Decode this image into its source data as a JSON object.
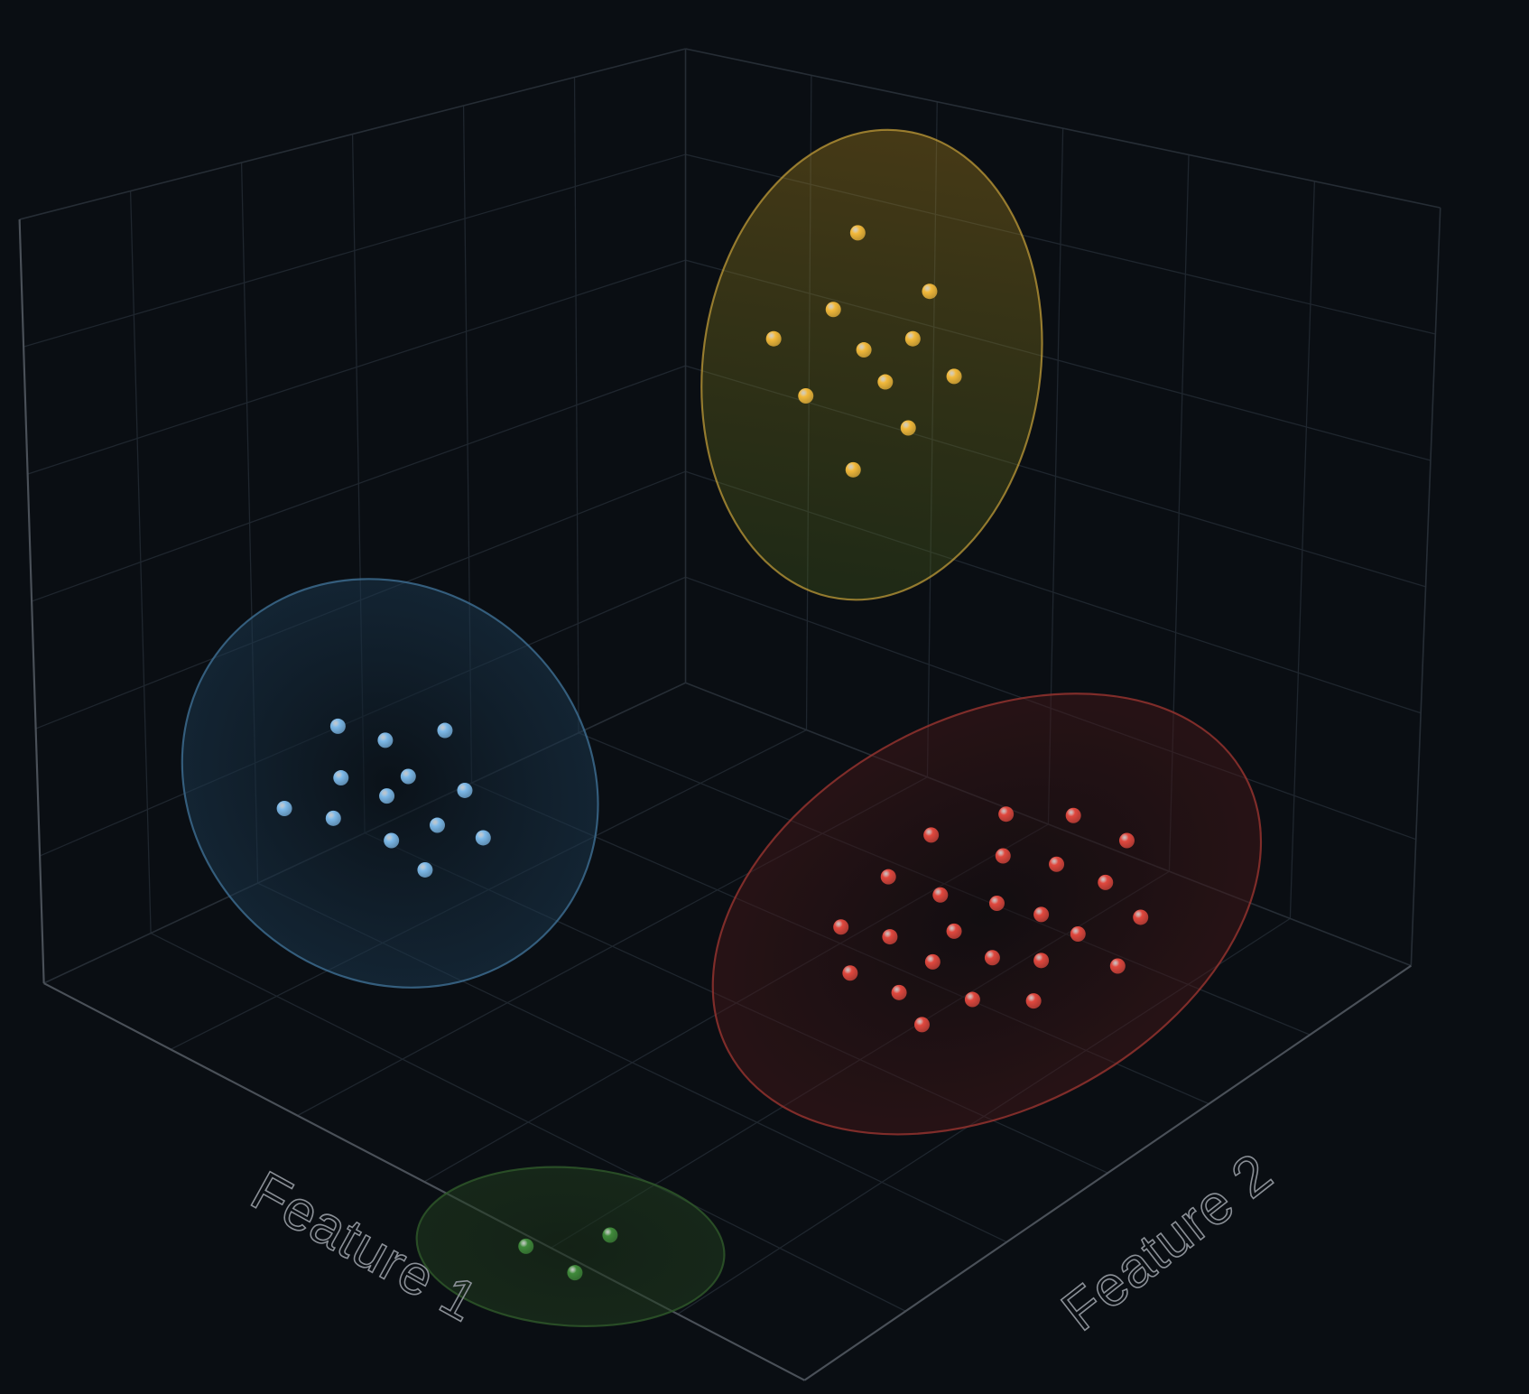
{
  "chart_data": {
    "type": "scatter",
    "axis_labels": [
      "Feature 1",
      "Feature 2"
    ],
    "xlim": [
      0,
      100
    ],
    "ylim": [
      0,
      100
    ],
    "series": [
      {
        "color": "#f2b93b",
        "x": [
          56.1,
          60.8,
          54.5,
          50.6,
          56.5,
          59.7,
          57.9,
          62.4,
          52.7,
          59.4,
          55.8
        ],
        "values": [
          83.3,
          79.1,
          77.8,
          75.7,
          74.9,
          75.7,
          72.6,
          73.0,
          71.6,
          69.3,
          66.3
        ]
      },
      {
        "color": "#7db9e8",
        "x": [
          22.1,
          25.2,
          29.1,
          22.3,
          26.7,
          25.3,
          30.4,
          18.6,
          21.8,
          28.6,
          25.6,
          31.6,
          27.8
        ],
        "values": [
          47.9,
          46.9,
          47.6,
          44.2,
          44.3,
          42.9,
          43.3,
          42.0,
          41.3,
          40.8,
          39.7,
          39.9,
          37.6
        ]
      },
      {
        "color": "#e0483e",
        "x": [
          65.8,
          70.2,
          60.9,
          73.7,
          65.6,
          69.1,
          58.1,
          72.3,
          61.5,
          65.2,
          68.1,
          74.6,
          55.0,
          62.4,
          58.2,
          70.5,
          61.0,
          64.9,
          68.1,
          73.1,
          55.6,
          58.8,
          63.6,
          67.6,
          60.3
        ],
        "values": [
          41.6,
          41.5,
          40.1,
          39.7,
          38.6,
          38.0,
          37.1,
          36.7,
          35.8,
          35.2,
          34.4,
          34.2,
          33.5,
          33.2,
          32.8,
          33.0,
          31.0,
          31.3,
          31.1,
          30.7,
          30.2,
          28.8,
          28.3,
          28.2,
          26.5
        ]
      },
      {
        "color": "#3f8a3a",
        "x": [
          34.4,
          39.9,
          37.6
        ],
        "values": [
          10.6,
          11.4,
          8.7
        ]
      }
    ]
  }
}
